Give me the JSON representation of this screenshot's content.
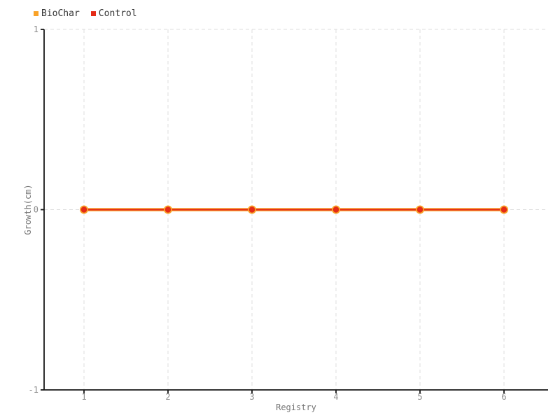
{
  "legend": {
    "items": [
      {
        "label": "BioChar",
        "color": "#f9a227"
      },
      {
        "label": "Control",
        "color": "#e42b17"
      }
    ]
  },
  "chart_data": {
    "type": "line",
    "title": "",
    "x": [
      1,
      2,
      3,
      4,
      5,
      6
    ],
    "series": [
      {
        "name": "BioChar",
        "color": "#f9a227",
        "values": [
          0,
          0,
          0,
          0,
          0,
          0
        ]
      },
      {
        "name": "Control",
        "color": "#e42b17",
        "values": [
          0,
          0,
          0,
          0,
          0,
          0
        ]
      }
    ],
    "xlabel": "Registry",
    "ylabel": "Growth(cm)",
    "xticks": [
      1,
      2,
      3,
      4,
      5,
      6
    ],
    "yticks": [
      -1,
      0,
      1
    ],
    "ylim": [
      -1,
      1
    ],
    "grid": "dashed",
    "legend_position": "top-left"
  }
}
